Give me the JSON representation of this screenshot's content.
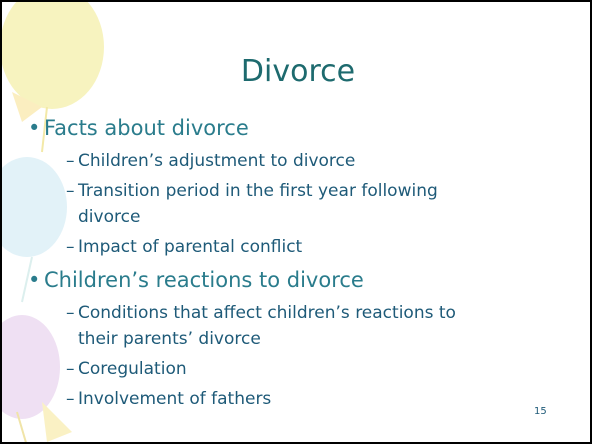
{
  "title": "Divorce",
  "bullets": [
    {
      "text": "Facts about divorce",
      "items": [
        "Children’s adjustment to divorce",
        "Transition period in the first year following divorce",
        "Impact of parental conflict"
      ]
    },
    {
      "text": "Children’s reactions to divorce",
      "items": [
        "Conditions that affect children’s reactions to their parents’ divorce",
        "Coregulation",
        "Involvement of fathers"
      ]
    }
  ],
  "slide_number": "15"
}
